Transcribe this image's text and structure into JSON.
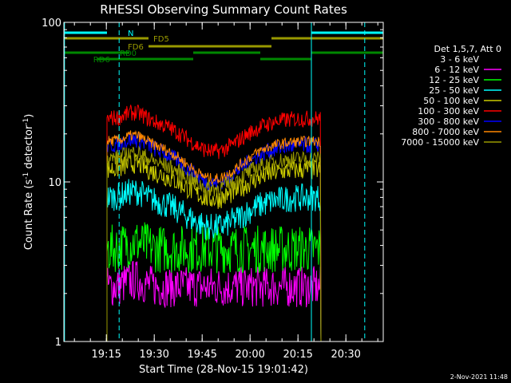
{
  "chart_data": {
    "type": "line",
    "title": "RHESSI Observing Summary Count Rates",
    "xlabel": "Start Time (28-Nov-15 19:01:42)",
    "ylabel_main": "Count Rate (s",
    "ylabel_sup1": "-1",
    "ylabel_mid": " detector",
    "ylabel_sup2": "-1",
    "ylabel_end": ")",
    "y_scale": "log",
    "ylim": [
      1,
      100
    ],
    "xlim_minutes": [
      0,
      100
    ],
    "x_ticks": [
      {
        "label": "19:15",
        "minutes": 13.3
      },
      {
        "label": "19:30",
        "minutes": 28.3
      },
      {
        "label": "19:45",
        "minutes": 43.3
      },
      {
        "label": "20:00",
        "minutes": 58.3
      },
      {
        "label": "20:15",
        "minutes": 73.3
      },
      {
        "label": "20:30",
        "minutes": 88.3
      }
    ],
    "y_ticks": [
      {
        "label": "1",
        "value": 1
      },
      {
        "label": "10",
        "value": 10
      },
      {
        "label": "100",
        "value": 100
      }
    ],
    "legend_title": "Det 1,5,7, Att 0",
    "legend_position": "right",
    "data_start_minutes": 13.5,
    "data_end_minutes": 80.5,
    "series": [
      {
        "name": "3 - 6 keV",
        "color": "#000000",
        "base": 3.0,
        "dip": 0.0,
        "noise": 0.35
      },
      {
        "name": "6 - 12 keV",
        "color": "#ff00ff",
        "base": 2.2,
        "dip": 0.0,
        "noise": 0.3
      },
      {
        "name": "12 - 25 keV",
        "color": "#00ff00",
        "base": 3.8,
        "dip": 0.0,
        "noise": 0.35
      },
      {
        "name": "25 - 50 keV",
        "color": "#00ffff",
        "base": 8.0,
        "dip": 0.35,
        "noise": 0.2
      },
      {
        "name": "50 - 100 keV",
        "color": "#cccc00",
        "base": 12.0,
        "dip": 0.35,
        "noise": 0.15
      },
      {
        "name": "100 - 300 keV",
        "color": "#ff0000",
        "base": 25.0,
        "dip": 0.38,
        "noise": 0.12
      },
      {
        "name": "300 - 800 keV",
        "color": "#0000ff",
        "base": 17.0,
        "dip": 0.42,
        "noise": 0.12
      },
      {
        "name": "800 - 7000 keV",
        "color": "#ff8800",
        "base": 18.0,
        "dip": 0.42,
        "noise": 0.08
      },
      {
        "name": "7000 - 15000 keV",
        "color": "#999900",
        "base": 14.0,
        "dip": 0.35,
        "noise": 0.12
      }
    ],
    "status_bars": [
      {
        "label": "N",
        "color": "#00ffff",
        "segments": [
          [
            0,
            13.5
          ],
          [
            77.5,
            100
          ]
        ]
      },
      {
        "label": "FD5",
        "color": "#999900",
        "segments": [
          [
            0,
            26.5
          ],
          [
            65,
            100
          ]
        ]
      },
      {
        "label": "FD6",
        "color": "#999900",
        "segments": [
          [
            26.5,
            65
          ]
        ]
      },
      {
        "label": "RD0",
        "color": "#008800",
        "segments": [
          [
            0,
            20.5
          ],
          [
            40.5,
            61.5
          ],
          [
            77.5,
            100
          ]
        ]
      },
      {
        "label": "RD6",
        "color": "#008800",
        "segments": [
          [
            10.5,
            40.5
          ],
          [
            61.5,
            77.5
          ]
        ]
      }
    ],
    "vertical_markers": [
      {
        "minutes": 17.3,
        "color": "#00ffff",
        "style": "dashed"
      },
      {
        "minutes": 0.2,
        "color": "#00ffff",
        "style": "solid"
      },
      {
        "minutes": 77.5,
        "color": "#00ffff",
        "style": "solid"
      },
      {
        "minutes": 94.2,
        "color": "#00ffff",
        "style": "dashed"
      }
    ],
    "grid": false
  },
  "timestamp": "2-Nov-2021 11:48"
}
